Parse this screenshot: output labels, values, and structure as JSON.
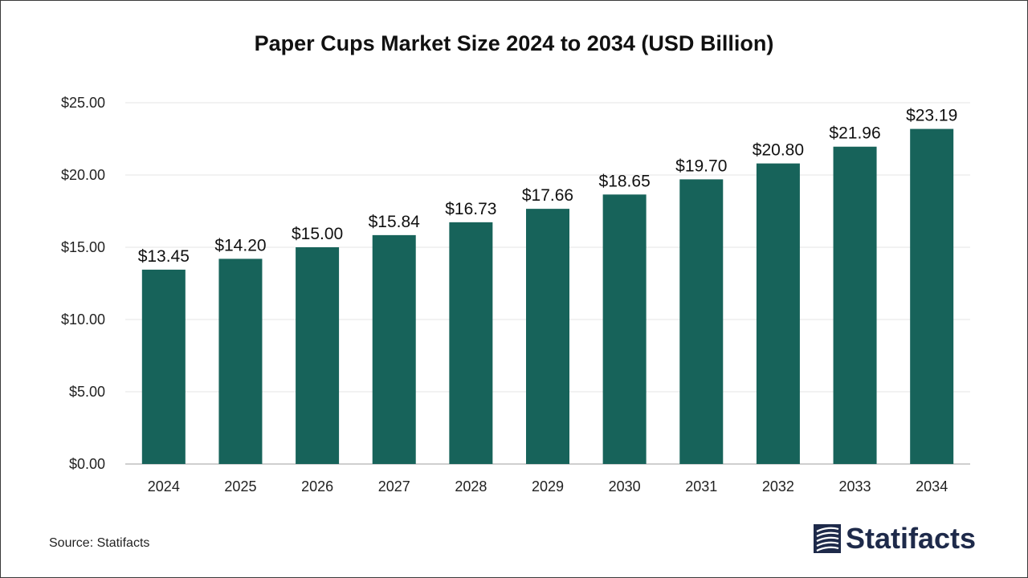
{
  "source": "Source: Statifacts",
  "brand": {
    "name": "Statifacts",
    "color": "#1e2a4a"
  },
  "colors": {
    "bar": "#17635a",
    "grid": "#e6e6e6",
    "axis": "#bfbfbf",
    "text": "#222222"
  },
  "chart_data": {
    "type": "bar",
    "title": "Paper Cups Market Size 2024 to 2034 (USD Billion)",
    "xlabel": "",
    "ylabel": "",
    "categories": [
      "2024",
      "2025",
      "2026",
      "2027",
      "2028",
      "2029",
      "2030",
      "2031",
      "2032",
      "2033",
      "2034"
    ],
    "values": [
      13.45,
      14.2,
      15.0,
      15.84,
      16.73,
      17.66,
      18.65,
      19.7,
      20.8,
      21.96,
      23.19
    ],
    "value_labels": [
      "$13.45",
      "$14.20",
      "$15.00",
      "$15.84",
      "$16.73",
      "$17.66",
      "$18.65",
      "$19.70",
      "$20.80",
      "$21.96",
      "$23.19"
    ],
    "yticks": [
      0,
      5,
      10,
      15,
      20,
      25
    ],
    "ytick_labels": [
      "$0.00",
      "$5.00",
      "$10.00",
      "$15.00",
      "$20.00",
      "$25.00"
    ],
    "ylim": [
      0,
      25
    ],
    "grid": true,
    "legend": "none"
  }
}
